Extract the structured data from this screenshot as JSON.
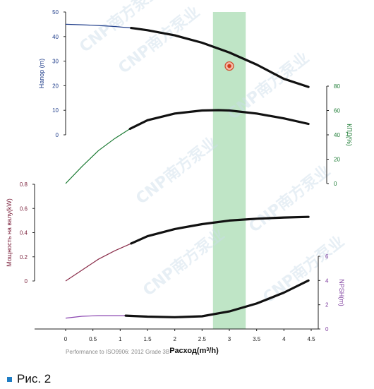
{
  "chart_data": {
    "type": "line",
    "x_axis": {
      "label_prefix": "Расход(m",
      "label_sup": "3",
      "label_suffix": "/h)",
      "range": [
        0,
        4.5
      ],
      "ticks": [
        "0",
        "0.5",
        "1",
        "1.5",
        "2",
        "2.5",
        "3",
        "3.5",
        "4",
        "4.5"
      ]
    },
    "operating_band": {
      "x_from": 2.7,
      "x_to": 3.3,
      "color": "#bfe5c6"
    },
    "duty_point": {
      "x": 3.0,
      "y": 28
    },
    "panels": [
      {
        "id": "head",
        "label": "Напор (m)",
        "label_color": "#1f3d8a",
        "axis_side": "left",
        "range": [
          0,
          50
        ],
        "ticks": [
          "0",
          "10",
          "20",
          "30",
          "40",
          "50"
        ],
        "thin_color": "#1f3d8a",
        "thin_x": [
          0,
          0.3,
          0.6,
          0.9,
          1.2
        ],
        "thin_y": [
          45,
          44.8,
          44.5,
          44.1,
          43.5
        ],
        "thick_x": [
          1.2,
          1.5,
          2.0,
          2.5,
          3.0,
          3.5,
          4.0,
          4.45
        ],
        "thick_y": [
          43.5,
          42.6,
          40.5,
          37.5,
          33.5,
          28.6,
          22.8,
          19.5
        ]
      },
      {
        "id": "efficiency",
        "label": "КПД(%)",
        "label_color": "#1a7a32",
        "axis_side": "right",
        "range": [
          0,
          80
        ],
        "ticks": [
          "0",
          "20",
          "40",
          "60",
          "80"
        ],
        "thin_color": "#1a7a32",
        "thin_x": [
          0,
          0.3,
          0.6,
          0.9,
          1.18
        ],
        "thin_y": [
          0,
          14,
          27,
          37,
          45
        ],
        "thick_x": [
          1.18,
          1.5,
          2.0,
          2.5,
          2.8,
          3.0,
          3.5,
          4.0,
          4.45
        ],
        "thick_y": [
          45,
          52,
          57.5,
          60,
          60.3,
          60,
          57.5,
          53.5,
          49
        ]
      },
      {
        "id": "power",
        "label": "Мощность на валу(kW)",
        "label_color": "#7a1f3a",
        "axis_side": "left",
        "range": [
          0,
          0.8
        ],
        "ticks": [
          "0",
          "0.2",
          "0.4",
          "0.6",
          "0.8"
        ],
        "thin_color": "#8a2d4a",
        "thin_x": [
          0,
          0.3,
          0.6,
          0.9,
          1.2
        ],
        "thin_y": [
          0,
          0.09,
          0.18,
          0.25,
          0.31
        ],
        "thick_x": [
          1.2,
          1.5,
          2.0,
          2.5,
          3.0,
          3.5,
          4.0,
          4.45
        ],
        "thick_y": [
          0.31,
          0.37,
          0.43,
          0.47,
          0.5,
          0.515,
          0.525,
          0.53
        ]
      },
      {
        "id": "npsh",
        "label": "NPSH(m)",
        "label_color": "#8040a0",
        "axis_side": "right",
        "range": [
          0,
          6
        ],
        "ticks": [
          "0",
          "2",
          "4",
          "6"
        ],
        "thin_color": "#8a45b0",
        "thin_x": [
          0,
          0.3,
          0.6,
          0.9,
          1.1
        ],
        "thin_y": [
          0.9,
          1.05,
          1.1,
          1.1,
          1.1
        ],
        "thick_x": [
          1.1,
          1.5,
          2.0,
          2.5,
          3.0,
          3.5,
          4.0,
          4.45
        ],
        "thick_y": [
          1.1,
          1.02,
          0.97,
          1.05,
          1.45,
          2.1,
          3.0,
          4.0
        ]
      }
    ]
  },
  "watermark": "CNP南方泵业",
  "footnote": "Performance to  ISO9906:  2012 Grade 3B",
  "caption": "Рис. 2"
}
